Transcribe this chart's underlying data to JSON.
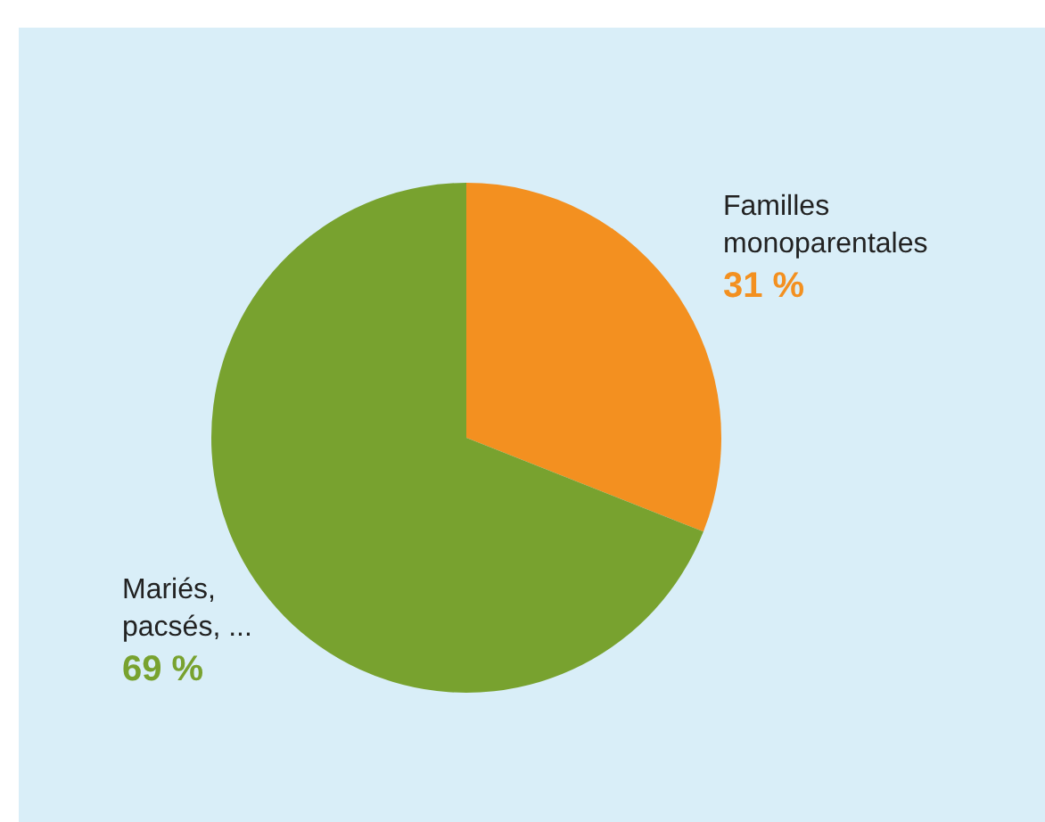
{
  "chart_data": {
    "type": "pie",
    "categories": [
      "Familles\nmonoparentales",
      "Mariés,\npacsés, ..."
    ],
    "values": [
      31,
      69
    ],
    "colors": [
      "#f39020",
      "#78a22f"
    ],
    "value_labels": [
      "31 %",
      "69 %"
    ]
  }
}
